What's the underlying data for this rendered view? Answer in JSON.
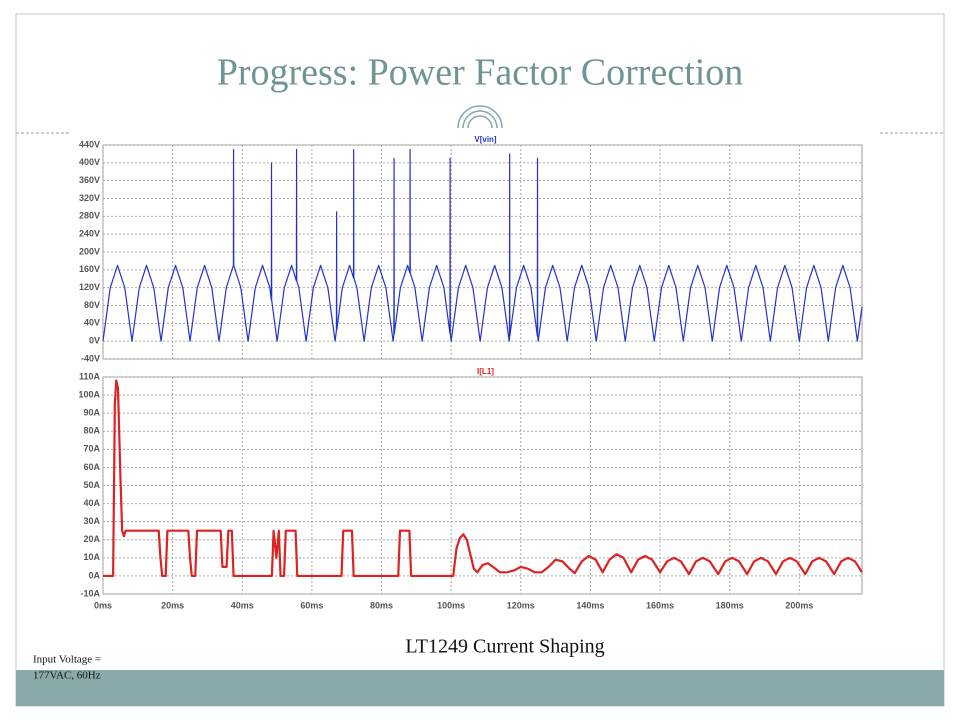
{
  "title": "Progress: Power Factor Correction",
  "caption": "LT1249 Current Shaping",
  "note": [
    "Input Voltage =",
    "177VAC, 60Hz"
  ],
  "chart_data": [
    {
      "type": "line",
      "grid": true,
      "xlim": [
        0,
        218
      ],
      "ylim": [
        -40,
        440
      ],
      "yticks": [
        {
          "value": -40,
          "label": "-40V"
        },
        {
          "value": 0,
          "label": "0V"
        },
        {
          "value": 40,
          "label": "40V"
        },
        {
          "value": 80,
          "label": "80V"
        },
        {
          "value": 120,
          "label": "120V"
        },
        {
          "value": 160,
          "label": "160V"
        },
        {
          "value": 200,
          "label": "200V"
        },
        {
          "value": 240,
          "label": "240V"
        },
        {
          "value": 280,
          "label": "280V"
        },
        {
          "value": 320,
          "label": "320V"
        },
        {
          "value": 360,
          "label": "360V"
        },
        {
          "value": 400,
          "label": "400V"
        },
        {
          "value": 440,
          "label": "440V"
        }
      ],
      "x": [
        0,
        2.08,
        4.17,
        6.25,
        8.33,
        10.42,
        12.5,
        14.58,
        16.67,
        18.75,
        20.83,
        22.92,
        25,
        27.08,
        29.17,
        31.25,
        33.33,
        35.42,
        37.45,
        37.5,
        37.55,
        39.58,
        41.67,
        43.75,
        45.83,
        47.92,
        48.35,
        48.4,
        48.45,
        50,
        52.08,
        54.17,
        55.55,
        55.6,
        55.65,
        56.25,
        58.33,
        60.42,
        62.5,
        64.58,
        66.67,
        67.05,
        67.1,
        67.15,
        68.75,
        70.83,
        71.95,
        72,
        72.05,
        72.92,
        75,
        77.08,
        79.17,
        81.25,
        83.33,
        83.55,
        83.6,
        83.65,
        85.42,
        87.5,
        88.15,
        88.2,
        88.25,
        89.58,
        91.67,
        93.75,
        95.83,
        97.92,
        99.65,
        99.7,
        99.75,
        100,
        102.08,
        104.17,
        106.25,
        108.33,
        110.42,
        112.5,
        114.58,
        116.67,
        116.75,
        116.8,
        116.85,
        118.75,
        120.83,
        122.92,
        124.75,
        124.8,
        124.85,
        125,
        127.08,
        129.17,
        131.25,
        133.33,
        135.42,
        137.5,
        139.58,
        141.67,
        143.75,
        145.83,
        147.92,
        150,
        152.08,
        154.17,
        156.25,
        158.33,
        160.42,
        162.5,
        164.58,
        166.67,
        168.75,
        170.83,
        172.92,
        175,
        177.08,
        179.17,
        181.25,
        183.33,
        185.42,
        187.5,
        189.58,
        191.67,
        193.75,
        195.83,
        197.92,
        200,
        202.08,
        204.17,
        206.25,
        208.33,
        210.42,
        212.5,
        214.58,
        216.67,
        218
      ],
      "series": [
        {
          "name": "V[vin]",
          "color": "#2233cc",
          "values": [
            0,
            120,
            170,
            120,
            0,
            120,
            170,
            120,
            0,
            120,
            170,
            120,
            0,
            120,
            170,
            120,
            0,
            120,
            170,
            430,
            170,
            120,
            0,
            120,
            170,
            120,
            92,
            400,
            92,
            0,
            120,
            170,
            135,
            430,
            135,
            120,
            0,
            120,
            170,
            120,
            0,
            25,
            290,
            25,
            120,
            170,
            142,
            430,
            142,
            120,
            0,
            120,
            170,
            120,
            0,
            16,
            410,
            16,
            120,
            170,
            153,
            430,
            153,
            120,
            0,
            120,
            170,
            120,
            17,
            410,
            17,
            0,
            120,
            170,
            120,
            0,
            120,
            170,
            120,
            0,
            6,
            420,
            12,
            120,
            170,
            120,
            12,
            410,
            12,
            0,
            120,
            170,
            120,
            0,
            120,
            170,
            120,
            0,
            120,
            170,
            120,
            0,
            120,
            170,
            120,
            0,
            120,
            170,
            120,
            0,
            120,
            170,
            120,
            0,
            120,
            170,
            120,
            0,
            120,
            170,
            120,
            0,
            120,
            170,
            120,
            0,
            120,
            170,
            120,
            0,
            120,
            170,
            120,
            0,
            77
          ]
        }
      ]
    },
    {
      "type": "line",
      "grid": true,
      "xlim": [
        0,
        218
      ],
      "ylim": [
        -10,
        110
      ],
      "xticks": [
        {
          "value": 0,
          "label": "0ms"
        },
        {
          "value": 20,
          "label": "20ms"
        },
        {
          "value": 40,
          "label": "40ms"
        },
        {
          "value": 60,
          "label": "60ms"
        },
        {
          "value": 80,
          "label": "80ms"
        },
        {
          "value": 100,
          "label": "100ms"
        },
        {
          "value": 120,
          "label": "120ms"
        },
        {
          "value": 140,
          "label": "140ms"
        },
        {
          "value": 160,
          "label": "160ms"
        },
        {
          "value": 180,
          "label": "180ms"
        },
        {
          "value": 200,
          "label": "200ms"
        }
      ],
      "yticks": [
        {
          "value": -10,
          "label": "-10A"
        },
        {
          "value": 0,
          "label": "0A"
        },
        {
          "value": 10,
          "label": "10A"
        },
        {
          "value": 20,
          "label": "20A"
        },
        {
          "value": 30,
          "label": "30A"
        },
        {
          "value": 40,
          "label": "40A"
        },
        {
          "value": 50,
          "label": "50A"
        },
        {
          "value": 60,
          "label": "60A"
        },
        {
          "value": 70,
          "label": "70A"
        },
        {
          "value": 80,
          "label": "80A"
        },
        {
          "value": 90,
          "label": "90A"
        },
        {
          "value": 100,
          "label": "100A"
        },
        {
          "value": 110,
          "label": "110A"
        }
      ],
      "x": [
        0,
        2.9,
        3.4,
        3.8,
        4.3,
        5,
        5.5,
        6,
        6.5,
        16,
        16.5,
        17,
        18,
        18.5,
        24.5,
        25,
        25.5,
        26.5,
        27,
        33.8,
        34.3,
        35.5,
        36,
        37,
        37.5,
        48.5,
        49,
        49.8,
        50.5,
        51,
        52,
        52.5,
        55.3,
        55.8,
        68.5,
        69,
        71.5,
        72,
        84.8,
        85.3,
        88,
        88.5,
        100.6,
        101.5,
        102.5,
        103.5,
        104.5,
        105.5,
        106.5,
        107.5,
        109,
        110.5,
        112,
        114,
        116,
        118,
        120,
        122,
        124,
        126,
        128,
        130,
        132,
        134,
        135.5,
        137.5,
        139.5,
        141.5,
        143.5,
        145.5,
        147.5,
        149.5,
        151.7,
        153.7,
        155.7,
        157.7,
        160,
        162,
        164,
        166,
        168.3,
        170.3,
        172.3,
        174.3,
        176.7,
        178.7,
        180.7,
        182.7,
        185,
        187,
        189,
        191,
        193.3,
        195.3,
        197.3,
        199.3,
        201.7,
        203.7,
        205.7,
        207.7,
        210,
        212,
        214,
        216,
        218
      ],
      "series": [
        {
          "name": "I[L1]",
          "color": "#dd2222",
          "values": [
            0,
            0,
            95,
            108,
            104,
            55,
            25,
            22,
            25,
            25,
            10,
            0,
            0,
            25,
            25,
            10,
            0,
            0,
            25,
            25,
            5,
            5,
            25,
            25,
            0,
            0,
            25,
            10,
            25,
            0,
            0,
            25,
            25,
            0,
            0,
            25,
            25,
            0,
            0,
            25,
            25,
            0,
            0,
            15,
            21,
            23,
            20,
            12,
            4,
            2,
            6,
            7,
            5,
            2,
            2,
            3,
            5,
            4,
            2,
            2,
            5,
            9,
            8,
            4,
            1.5,
            8,
            11,
            9,
            2,
            9,
            12,
            10,
            2,
            9,
            11,
            9,
            2,
            8,
            10,
            8,
            1,
            8,
            10,
            8,
            1,
            8,
            10,
            8,
            1,
            8,
            10,
            8,
            1,
            8,
            10,
            8,
            1,
            8,
            10,
            8,
            1,
            8,
            10,
            8,
            2
          ]
        }
      ]
    }
  ]
}
